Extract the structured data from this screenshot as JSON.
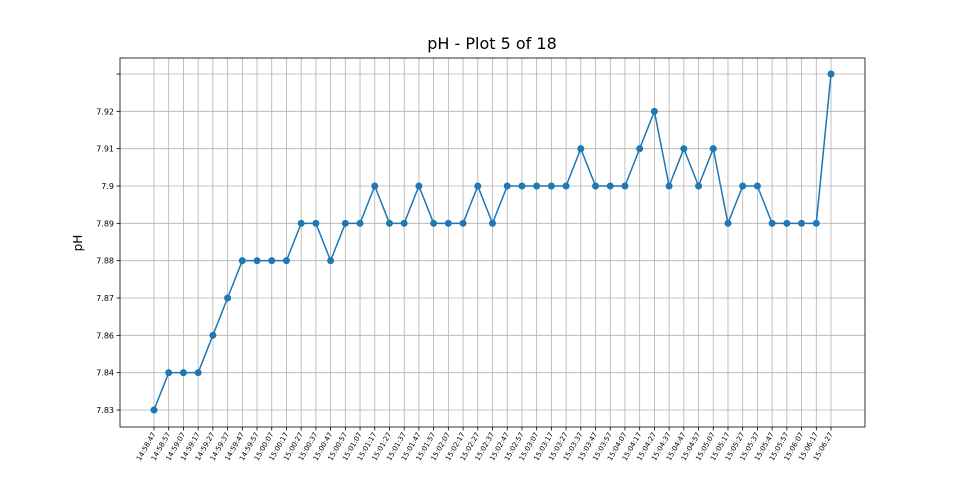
{
  "chart_data": {
    "type": "line",
    "title": "pH  - Plot 5 of 18",
    "y_label": "pH",
    "y_axis": "categorical",
    "color": "#1f77b4",
    "grid": true,
    "categories": [
      "14:58:47",
      "14:58:57",
      "14:59:07",
      "14:59:17",
      "14:59:27",
      "14:59:37",
      "14:59:47",
      "14:59:57",
      "15:00:07",
      "15:00:17",
      "15:00:27",
      "15:00:37",
      "15:00:47",
      "15:00:57",
      "15:01:07",
      "15:01:17",
      "15:01:27",
      "15:01:37",
      "15:01:47",
      "15:01:57",
      "15:02:07",
      "15:02:17",
      "15:02:27",
      "15:02:37",
      "15:02:47",
      "15:02:57",
      "15:03:07",
      "15:03:17",
      "15:03:27",
      "15:03:37",
      "15:03:47",
      "15:03:57",
      "15:04:07",
      "15:04:17",
      "15:04:27",
      "15:04:37",
      "15:04:47",
      "15:04:57",
      "15:05:07",
      "15:05:17",
      "15:05:27",
      "15:05:37",
      "15:05:47",
      "15:05:57",
      "15:06:07",
      "15:06:17",
      "15:06:27"
    ],
    "values": [
      7.83,
      7.84,
      7.84,
      7.84,
      7.86,
      7.87,
      7.88,
      7.88,
      7.88,
      7.88,
      7.89,
      7.89,
      7.88,
      7.89,
      7.89,
      7.9,
      7.89,
      7.89,
      7.9,
      7.89,
      7.89,
      7.89,
      7.9,
      7.89,
      7.9,
      7.9,
      7.9,
      7.9,
      7.9,
      7.91,
      7.9,
      7.9,
      7.9,
      7.91,
      7.92,
      7.9,
      7.91,
      7.9,
      7.91,
      7.89,
      7.9,
      7.9,
      7.89,
      7.89,
      7.89,
      7.89,
      7.93
    ],
    "yticks": [
      7.83,
      7.84,
      7.86,
      7.87,
      7.88,
      7.89,
      7.9,
      7.91,
      7.92,
      {
        "value": 7.93,
        "label": null
      }
    ]
  }
}
